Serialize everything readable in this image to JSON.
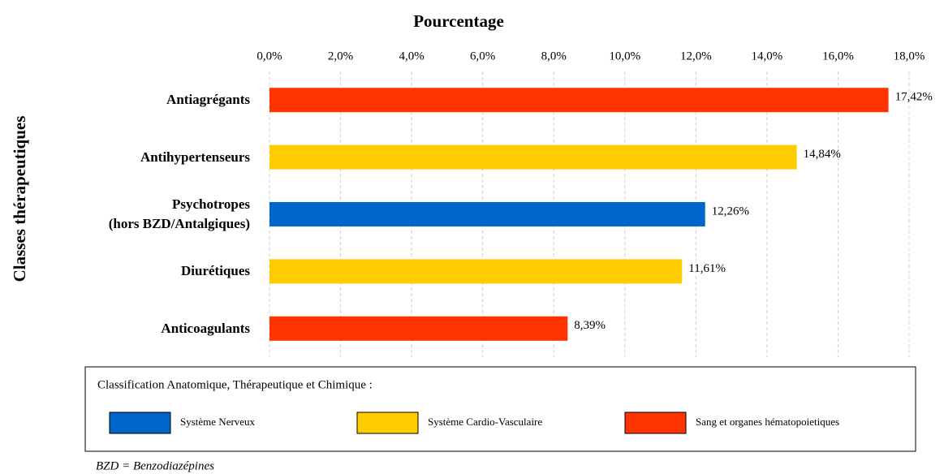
{
  "chart_data": {
    "type": "hbar",
    "x_label": "Pourcentage",
    "y_label": "Classes thérapeutiques",
    "categories": [
      "Antiagrégants",
      "Antihypertenseurs",
      "Psychotropes\n(hors BZD/Antalgiques)",
      "Diurétiques",
      "Anticoagulants"
    ],
    "values": [
      17.42,
      14.84,
      12.26,
      11.61,
      8.39
    ],
    "value_labels": [
      "17,42%",
      "14,84%",
      "12,26%",
      "11,61%",
      "8,39%"
    ],
    "colors": [
      "#ff3300",
      "#ffcc00",
      "#0066cc",
      "#ffcc00",
      "#ff3300"
    ],
    "xlim": [
      0,
      18
    ],
    "xticks": [
      {
        "value": 0,
        "label": "0,0%"
      },
      {
        "value": 2,
        "label": "2,0%"
      },
      {
        "value": 4,
        "label": "4,0%"
      },
      {
        "value": 6,
        "label": "6,0%"
      },
      {
        "value": 8,
        "label": "8,0%"
      },
      {
        "value": 10,
        "label": "10,0%"
      },
      {
        "value": 12,
        "label": "12,0%"
      },
      {
        "value": 14,
        "label": "14,0%"
      },
      {
        "value": 16,
        "label": "16,0%"
      },
      {
        "value": 18,
        "label": "18,0%"
      }
    ],
    "grid": true,
    "legend": {
      "title": "Classification Anatomique, Thérapeutique  et Chimique :",
      "items": [
        {
          "name": "Système Nerveux",
          "color": "#0066cc"
        },
        {
          "name": "Système Cardio-Vasculaire",
          "color": "#ffcc00"
        },
        {
          "name": "Sang et organes hématopoietiques",
          "color": "#ff3300"
        }
      ]
    },
    "footnote": "BZD = Benzodiazépines"
  }
}
